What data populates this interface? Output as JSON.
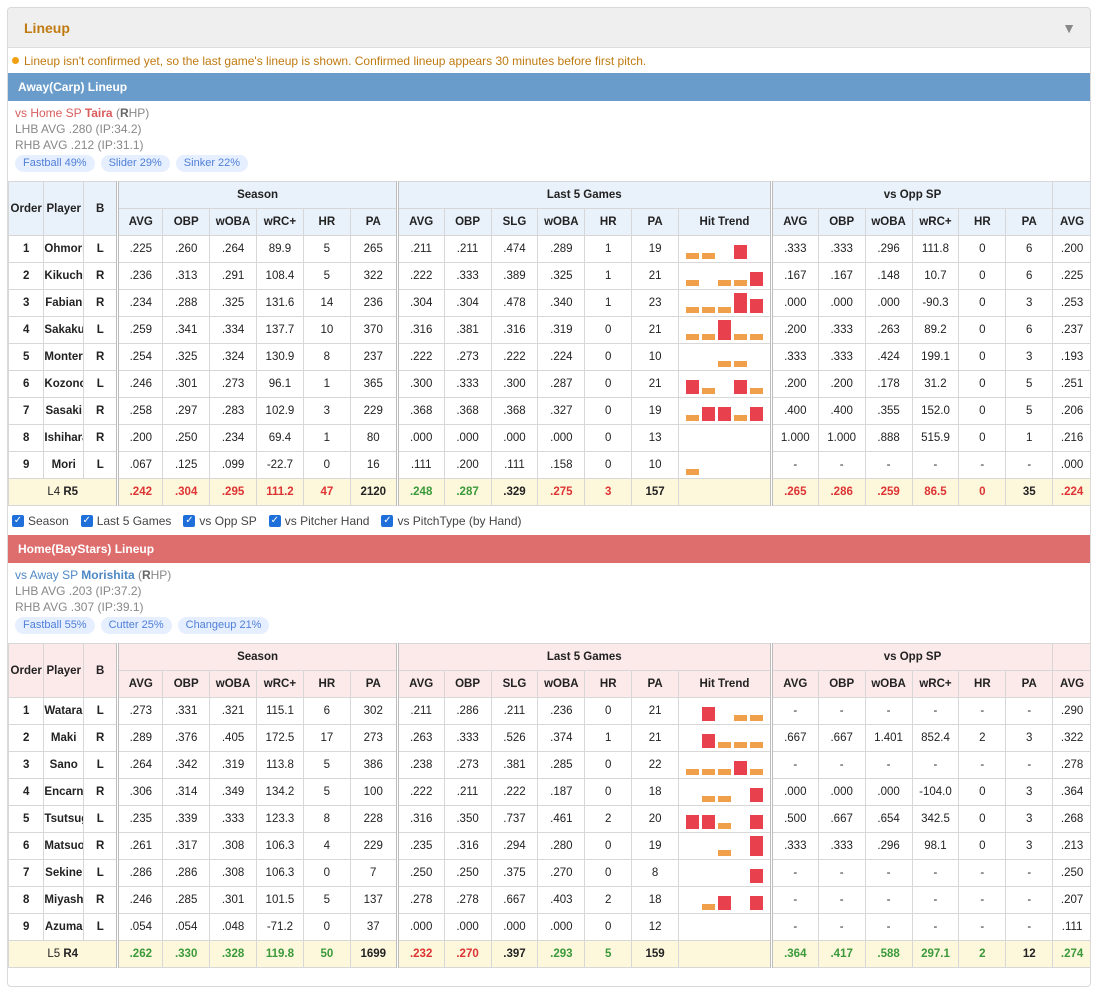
{
  "title": "Lineup",
  "notice": "Lineup isn't confirmed yet, so the last game's lineup is shown. Confirmed lineup appears 30 minutes before first pitch.",
  "colors": {
    "accent": "#c07a10",
    "away": "#6a9ccb",
    "home": "#de6e6e",
    "hit_high": "#e8404d",
    "hit_low": "#f0a04b"
  },
  "headers": {
    "order": "Order",
    "player": "Player",
    "hand": "B",
    "season": "Season",
    "last5": "Last 5 Games",
    "vsopp": "vs Opp SP",
    "season_cols": [
      "AVG",
      "OBP",
      "wOBA",
      "wRC+",
      "HR",
      "PA"
    ],
    "last5_cols": [
      "AVG",
      "OBP",
      "SLG",
      "wOBA",
      "HR",
      "PA"
    ],
    "trend": "Hit Trend",
    "vsopp_cols": [
      "AVG",
      "OBP",
      "wOBA",
      "wRC+",
      "HR",
      "PA"
    ],
    "extra": "AVG"
  },
  "options": [
    "Season",
    "Last 5 Games",
    "vs Opp SP",
    "vs Pitcher Hand",
    "vs PitchType (by Hand)"
  ],
  "away": {
    "bar": "Away(Carp) Lineup",
    "sp": {
      "vs": "vs Home SP",
      "name": "Taira",
      "hand_open": " (",
      "hand_bold": "R",
      "hand_rest": "HP)",
      "lhb": "LHB AVG .280 (IP:34.2)",
      "rhb": "RHB AVG .212 (IP:31.1)"
    },
    "pitches": [
      "Fastball 49%",
      "Slider 29%",
      "Sinker 22%"
    ],
    "rows": [
      {
        "order": "1",
        "name": "Ohmori",
        "hand": "L",
        "s": [
          ".225",
          ".260",
          ".264",
          "89.9",
          "5",
          "265"
        ],
        "l": [
          ".211",
          ".211",
          ".474",
          ".289",
          "1",
          "19"
        ],
        "trend": [
          1,
          1,
          0,
          2,
          0
        ],
        "o": [
          ".333",
          ".333",
          ".296",
          "111.8",
          "0",
          "6"
        ],
        "x": ".200"
      },
      {
        "order": "2",
        "name": "Kikuchi",
        "hand": "R",
        "s": [
          ".236",
          ".313",
          ".291",
          "108.4",
          "5",
          "322"
        ],
        "l": [
          ".222",
          ".333",
          ".389",
          ".325",
          "1",
          "21"
        ],
        "trend": [
          1,
          0,
          1,
          1,
          2
        ],
        "o": [
          ".167",
          ".167",
          ".148",
          "10.7",
          "0",
          "6"
        ],
        "x": ".225"
      },
      {
        "order": "3",
        "name": "Fabian",
        "hand": "R",
        "s": [
          ".234",
          ".288",
          ".325",
          "131.6",
          "14",
          "236"
        ],
        "l": [
          ".304",
          ".304",
          ".478",
          ".340",
          "1",
          "23"
        ],
        "trend": [
          1,
          1,
          1,
          3,
          2
        ],
        "o": [
          ".000",
          ".000",
          ".000",
          "-90.3",
          "0",
          "3"
        ],
        "x": ".253"
      },
      {
        "order": "4",
        "name": "Sakakura",
        "hand": "L",
        "s": [
          ".259",
          ".341",
          ".334",
          "137.7",
          "10",
          "370"
        ],
        "l": [
          ".316",
          ".381",
          ".316",
          ".319",
          "0",
          "21"
        ],
        "trend": [
          1,
          1,
          3,
          1,
          1
        ],
        "o": [
          ".200",
          ".333",
          ".263",
          "89.2",
          "0",
          "6"
        ],
        "x": ".237"
      },
      {
        "order": "5",
        "name": "Montero",
        "hand": "R",
        "s": [
          ".254",
          ".325",
          ".324",
          "130.9",
          "8",
          "237"
        ],
        "l": [
          ".222",
          ".273",
          ".222",
          ".224",
          "0",
          "10"
        ],
        "trend": [
          0,
          0,
          1,
          1,
          0
        ],
        "o": [
          ".333",
          ".333",
          ".424",
          "199.1",
          "0",
          "3"
        ],
        "x": ".193"
      },
      {
        "order": "6",
        "name": "Kozono",
        "hand": "L",
        "s": [
          ".246",
          ".301",
          ".273",
          "96.1",
          "1",
          "365"
        ],
        "l": [
          ".300",
          ".333",
          ".300",
          ".287",
          "0",
          "21"
        ],
        "trend": [
          2,
          1,
          0,
          2,
          1
        ],
        "o": [
          ".200",
          ".200",
          ".178",
          "31.2",
          "0",
          "5"
        ],
        "x": ".251"
      },
      {
        "order": "7",
        "name": "Sasaki",
        "hand": "R",
        "s": [
          ".258",
          ".297",
          ".283",
          "102.9",
          "3",
          "229"
        ],
        "l": [
          ".368",
          ".368",
          ".368",
          ".327",
          "0",
          "19"
        ],
        "trend": [
          1,
          2,
          2,
          1,
          2
        ],
        "o": [
          ".400",
          ".400",
          ".355",
          "152.0",
          "0",
          "5"
        ],
        "x": ".206"
      },
      {
        "order": "8",
        "name": "Ishihara",
        "hand": "R",
        "s": [
          ".200",
          ".250",
          ".234",
          "69.4",
          "1",
          "80"
        ],
        "l": [
          ".000",
          ".000",
          ".000",
          ".000",
          "0",
          "13"
        ],
        "trend": [
          0,
          0,
          0,
          0,
          0
        ],
        "o": [
          "1.000",
          "1.000",
          ".888",
          "515.9",
          "0",
          "1"
        ],
        "x": ".216"
      },
      {
        "order": "9",
        "name": "Mori",
        "hand": "L",
        "s": [
          ".067",
          ".125",
          ".099",
          "-22.7",
          "0",
          "16"
        ],
        "l": [
          ".111",
          ".200",
          ".111",
          ".158",
          "0",
          "10"
        ],
        "trend": [
          1,
          0,
          0,
          0,
          0
        ],
        "o": [
          "-",
          "-",
          "-",
          "-",
          "-",
          "-"
        ],
        "x": ".000"
      }
    ],
    "total": {
      "hand_l": "L4",
      "hand_r": "R5",
      "s": [
        ".242",
        ".304",
        ".295",
        "111.2",
        "47",
        "2120"
      ],
      "l": [
        ".248",
        ".287",
        ".329",
        ".275",
        "3",
        "157"
      ],
      "o": [
        ".265",
        ".286",
        ".259",
        "86.5",
        "0",
        "35"
      ],
      "x": ".224"
    }
  },
  "home": {
    "bar": "Home(BayStars) Lineup",
    "sp": {
      "vs": "vs Away SP",
      "name": "Morishita",
      "hand_open": " (",
      "hand_bold": "R",
      "hand_rest": "HP)",
      "lhb": "LHB AVG .203 (IP:37.2)",
      "rhb": "RHB AVG .307 (IP:39.1)"
    },
    "pitches": [
      "Fastball 55%",
      "Cutter 25%",
      "Changeup 21%"
    ],
    "rows": [
      {
        "order": "1",
        "name": "Watarai",
        "hand": "L",
        "s": [
          ".273",
          ".331",
          ".321",
          "115.1",
          "6",
          "302"
        ],
        "l": [
          ".211",
          ".286",
          ".211",
          ".236",
          "0",
          "21"
        ],
        "trend": [
          0,
          2,
          0,
          1,
          1
        ],
        "o": [
          "-",
          "-",
          "-",
          "-",
          "-",
          "-"
        ],
        "x": ".290"
      },
      {
        "order": "2",
        "name": "Maki",
        "hand": "R",
        "s": [
          ".289",
          ".376",
          ".405",
          "172.5",
          "17",
          "273"
        ],
        "l": [
          ".263",
          ".333",
          ".526",
          ".374",
          "1",
          "21"
        ],
        "trend": [
          0,
          2,
          1,
          1,
          1
        ],
        "o": [
          ".667",
          ".667",
          "1.401",
          "852.4",
          "2",
          "3"
        ],
        "x": ".322"
      },
      {
        "order": "3",
        "name": "Sano",
        "hand": "L",
        "s": [
          ".264",
          ".342",
          ".319",
          "113.8",
          "5",
          "386"
        ],
        "l": [
          ".238",
          ".273",
          ".381",
          ".285",
          "0",
          "22"
        ],
        "trend": [
          1,
          1,
          1,
          2,
          1
        ],
        "o": [
          "-",
          "-",
          "-",
          "-",
          "-",
          "-"
        ],
        "x": ".278"
      },
      {
        "order": "4",
        "name": "Encarnacion",
        "hand": "R",
        "s": [
          ".306",
          ".314",
          ".349",
          "134.2",
          "5",
          "100"
        ],
        "l": [
          ".222",
          ".211",
          ".222",
          ".187",
          "0",
          "18"
        ],
        "trend": [
          0,
          1,
          1,
          0,
          2
        ],
        "o": [
          ".000",
          ".000",
          ".000",
          "-104.0",
          "0",
          "3"
        ],
        "x": ".364"
      },
      {
        "order": "5",
        "name": "Tsutsugo",
        "hand": "L",
        "s": [
          ".235",
          ".339",
          ".333",
          "123.3",
          "8",
          "228"
        ],
        "l": [
          ".316",
          ".350",
          ".737",
          ".461",
          "2",
          "20"
        ],
        "trend": [
          2,
          2,
          1,
          0,
          2
        ],
        "o": [
          ".500",
          ".667",
          ".654",
          "342.5",
          "0",
          "3"
        ],
        "x": ".268"
      },
      {
        "order": "6",
        "name": "Matsuo",
        "hand": "R",
        "s": [
          ".261",
          ".317",
          ".308",
          "106.3",
          "4",
          "229"
        ],
        "l": [
          ".235",
          ".316",
          ".294",
          ".280",
          "0",
          "19"
        ],
        "trend": [
          0,
          0,
          1,
          0,
          3
        ],
        "o": [
          ".333",
          ".333",
          ".296",
          "98.1",
          "0",
          "3"
        ],
        "x": ".213"
      },
      {
        "order": "7",
        "name": "Sekine",
        "hand": "L",
        "s": [
          ".286",
          ".286",
          ".308",
          "106.3",
          "0",
          "7"
        ],
        "l": [
          ".250",
          ".250",
          ".375",
          ".270",
          "0",
          "8"
        ],
        "trend": [
          0,
          0,
          0,
          0,
          2
        ],
        "o": [
          "-",
          "-",
          "-",
          "-",
          "-",
          "-"
        ],
        "x": ".250"
      },
      {
        "order": "8",
        "name": "Miyashita",
        "hand": "R",
        "s": [
          ".246",
          ".285",
          ".301",
          "101.5",
          "5",
          "137"
        ],
        "l": [
          ".278",
          ".278",
          ".667",
          ".403",
          "2",
          "18"
        ],
        "trend": [
          0,
          1,
          2,
          0,
          2
        ],
        "o": [
          "-",
          "-",
          "-",
          "-",
          "-",
          "-"
        ],
        "x": ".207"
      },
      {
        "order": "9",
        "name": "Azuma",
        "hand": "L",
        "s": [
          ".054",
          ".054",
          ".048",
          "-71.2",
          "0",
          "37"
        ],
        "l": [
          ".000",
          ".000",
          ".000",
          ".000",
          "0",
          "12"
        ],
        "trend": [
          0,
          0,
          0,
          0,
          0
        ],
        "o": [
          "-",
          "-",
          "-",
          "-",
          "-",
          "-"
        ],
        "x": ".111"
      }
    ],
    "total": {
      "hand_l": "L5",
      "hand_r": "R4",
      "s": [
        ".262",
        ".330",
        ".328",
        "119.8",
        "50",
        "1699"
      ],
      "l": [
        ".232",
        ".270",
        ".397",
        ".293",
        "5",
        "159"
      ],
      "o": [
        ".364",
        ".417",
        ".588",
        "297.1",
        "2",
        "12"
      ],
      "x": ".274"
    }
  },
  "total_colors": {
    "away": {
      "s": [
        "red",
        "red",
        "red",
        "red",
        "red",
        "black"
      ],
      "l": [
        "green",
        "green",
        "black",
        "red",
        "red",
        "black"
      ],
      "o": [
        "red",
        "red",
        "red",
        "red",
        "red",
        "black"
      ],
      "x": "red"
    },
    "home": {
      "s": [
        "green",
        "green",
        "green",
        "green",
        "green",
        "black"
      ],
      "l": [
        "red",
        "red",
        "black",
        "green",
        "green",
        "black"
      ],
      "o": [
        "green",
        "green",
        "green",
        "green",
        "green",
        "black"
      ],
      "x": "green"
    }
  }
}
